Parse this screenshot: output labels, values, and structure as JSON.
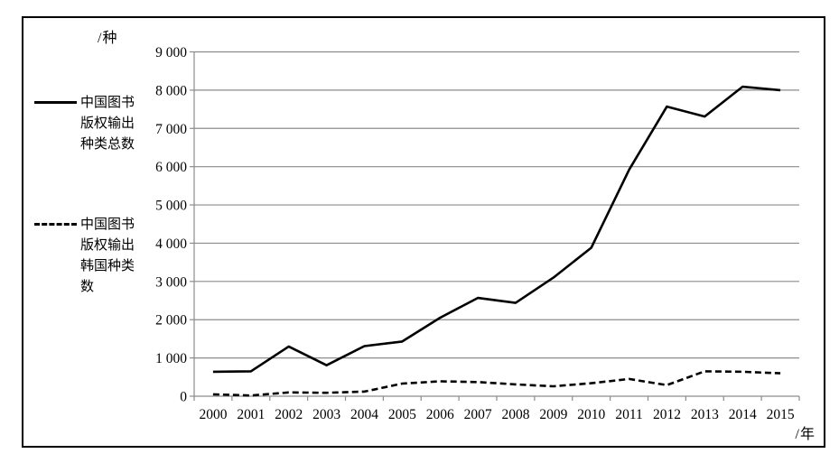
{
  "figure": {
    "y_unit": "/种",
    "x_unit": "/年"
  },
  "legend": [
    {
      "style": "solid",
      "label_lines": [
        "中国图书",
        "版权输出",
        "种类总数"
      ]
    },
    {
      "style": "dashed",
      "label_lines": [
        "中国图书",
        "版权输出",
        "韩国种类",
        "数"
      ]
    }
  ],
  "chart_data": {
    "type": "line",
    "title": "",
    "xlabel": "/年",
    "ylabel": "/种",
    "x": [
      "2000",
      "2001",
      "2002",
      "2003",
      "2004",
      "2005",
      "2006",
      "2007",
      "2008",
      "2009",
      "2010",
      "2011",
      "2012",
      "2013",
      "2014",
      "2015"
    ],
    "ylim": [
      0,
      9000
    ],
    "y_ticks": [
      0,
      1000,
      2000,
      3000,
      4000,
      5000,
      6000,
      7000,
      8000,
      9000
    ],
    "y_tick_labels": [
      "0",
      "1 000",
      "2 000",
      "3 000",
      "4 000",
      "5 000",
      "6 000",
      "7 000",
      "8 000",
      "9 000"
    ],
    "grid": true,
    "legend_position": "left",
    "series": [
      {
        "name": "中国图书版权输出种类总数",
        "line_style": "solid",
        "values": [
          640,
          650,
          1300,
          810,
          1310,
          1430,
          2050,
          2570,
          2440,
          3100,
          3880,
          5920,
          7570,
          7310,
          8090,
          8000
        ]
      },
      {
        "name": "中国图书版权输出韩国种类数",
        "line_style": "dashed",
        "values": [
          50,
          20,
          100,
          90,
          120,
          330,
          390,
          370,
          310,
          260,
          340,
          450,
          290,
          650,
          640,
          600
        ]
      }
    ],
    "colors": {
      "line": "#000000",
      "grid": "#8c8c8c",
      "axis": "#8c8c8c",
      "text": "#000000",
      "background": "#ffffff",
      "frame_border": "#000000"
    }
  }
}
